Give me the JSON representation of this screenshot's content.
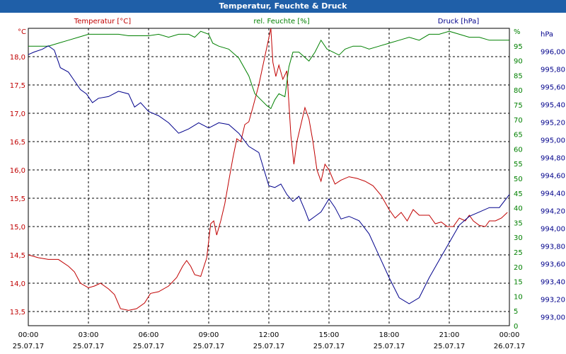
{
  "window": {
    "title": "Temperatur, Feuchte & Druck"
  },
  "chart_data": {
    "type": "line",
    "title": "Temperatur, Feuchte & Druck",
    "legend": {
      "placement": "top",
      "left": "Temperatur [°C]",
      "center": "rel. Feuchte [%]",
      "right": "Druck [hPa]"
    },
    "grid": true,
    "x_ticks": [
      {
        "time": "00:00",
        "date": "25.07.17"
      },
      {
        "time": "03:00",
        "date": "25.07.17"
      },
      {
        "time": "06:00",
        "date": "25.07.17"
      },
      {
        "time": "09:00",
        "date": "25.07.17"
      },
      {
        "time": "12:00",
        "date": "25.07.17"
      },
      {
        "time": "15:00",
        "date": "25.07.17"
      },
      {
        "time": "18:00",
        "date": "25.07.17"
      },
      {
        "time": "21:00",
        "date": "25.07.17"
      },
      {
        "time": "00:00",
        "date": "26.07.17"
      }
    ],
    "xlim_hours": [
      0,
      24
    ],
    "axes": {
      "temperature": {
        "unit": "°C",
        "ylim": [
          13.25,
          18.5
        ],
        "ticks": [
          "13,5",
          "14,0",
          "14,5",
          "15,0",
          "15,5",
          "16,0",
          "16,5",
          "17,0",
          "17,5",
          "18,0"
        ],
        "color": "#c00000"
      },
      "humidity": {
        "unit": "%",
        "ylim": [
          0,
          100
        ],
        "ticks": [
          "0",
          "5",
          "10",
          "15",
          "20",
          "25",
          "30",
          "35",
          "40",
          "45",
          "50",
          "55",
          "60",
          "65",
          "70",
          "75",
          "80",
          "85",
          "90",
          "95",
          "%"
        ],
        "color": "#008000"
      },
      "pressure": {
        "unit": "hPa",
        "ylim": [
          992.8,
          996.2
        ],
        "ticks": [
          "993,00",
          "993,20",
          "993,40",
          "993,60",
          "993,80",
          "994,00",
          "994,20",
          "994,40",
          "994,60",
          "994,80",
          "995,00",
          "995,20",
          "995,40",
          "995,60",
          "995,80",
          "996,00",
          "hPa"
        ],
        "color": "#00008b"
      }
    },
    "series": [
      {
        "name": "Temperatur [°C]",
        "axis": "temperature",
        "color": "#c00000",
        "points": [
          [
            0,
            14.5
          ],
          [
            0.5,
            14.45
          ],
          [
            1,
            14.42
          ],
          [
            1.5,
            14.42
          ],
          [
            2,
            14.3
          ],
          [
            2.3,
            14.2
          ],
          [
            2.6,
            14.0
          ],
          [
            3,
            13.92
          ],
          [
            3.3,
            13.95
          ],
          [
            3.6,
            14.0
          ],
          [
            4,
            13.9
          ],
          [
            4.3,
            13.8
          ],
          [
            4.6,
            13.55
          ],
          [
            5,
            13.52
          ],
          [
            5.4,
            13.55
          ],
          [
            5.8,
            13.65
          ],
          [
            6.1,
            13.82
          ],
          [
            6.5,
            13.85
          ],
          [
            7,
            13.95
          ],
          [
            7.4,
            14.1
          ],
          [
            7.7,
            14.3
          ],
          [
            7.9,
            14.4
          ],
          [
            8.1,
            14.3
          ],
          [
            8.3,
            14.15
          ],
          [
            8.6,
            14.12
          ],
          [
            8.9,
            14.45
          ],
          [
            9.1,
            15.05
          ],
          [
            9.25,
            15.1
          ],
          [
            9.4,
            14.85
          ],
          [
            9.6,
            15.1
          ],
          [
            9.8,
            15.4
          ],
          [
            10,
            15.8
          ],
          [
            10.2,
            16.2
          ],
          [
            10.4,
            16.55
          ],
          [
            10.6,
            16.5
          ],
          [
            10.8,
            16.8
          ],
          [
            11,
            16.85
          ],
          [
            11.2,
            17.1
          ],
          [
            11.5,
            17.5
          ],
          [
            11.8,
            18.0
          ],
          [
            11.95,
            18.25
          ],
          [
            12.1,
            18.5
          ],
          [
            12.2,
            17.9
          ],
          [
            12.35,
            17.65
          ],
          [
            12.5,
            17.85
          ],
          [
            12.7,
            17.6
          ],
          [
            12.9,
            17.75
          ],
          [
            13.1,
            16.6
          ],
          [
            13.25,
            16.1
          ],
          [
            13.4,
            16.5
          ],
          [
            13.6,
            16.8
          ],
          [
            13.8,
            17.1
          ],
          [
            14.0,
            16.9
          ],
          [
            14.2,
            16.5
          ],
          [
            14.4,
            16.0
          ],
          [
            14.6,
            15.8
          ],
          [
            14.8,
            16.1
          ],
          [
            15,
            16.0
          ],
          [
            15.3,
            15.75
          ],
          [
            15.6,
            15.82
          ],
          [
            16,
            15.88
          ],
          [
            16.4,
            15.85
          ],
          [
            16.8,
            15.8
          ],
          [
            17.2,
            15.72
          ],
          [
            17.6,
            15.55
          ],
          [
            18,
            15.3
          ],
          [
            18.3,
            15.15
          ],
          [
            18.6,
            15.25
          ],
          [
            18.9,
            15.1
          ],
          [
            19.2,
            15.3
          ],
          [
            19.5,
            15.2
          ],
          [
            20,
            15.2
          ],
          [
            20.3,
            15.05
          ],
          [
            20.6,
            15.08
          ],
          [
            20.9,
            15.0
          ],
          [
            21.2,
            15.0
          ],
          [
            21.5,
            15.15
          ],
          [
            21.8,
            15.1
          ],
          [
            22,
            15.2
          ],
          [
            22.2,
            15.1
          ],
          [
            22.5,
            15.02
          ],
          [
            22.8,
            15.0
          ],
          [
            23,
            15.1
          ],
          [
            23.3,
            15.1
          ],
          [
            23.6,
            15.15
          ],
          [
            23.9,
            15.25
          ]
        ]
      },
      {
        "name": "rel. Feuchte [%]",
        "axis": "humidity",
        "color": "#008000",
        "points": [
          [
            0,
            94
          ],
          [
            0.5,
            94
          ],
          [
            1,
            94
          ],
          [
            1.5,
            95
          ],
          [
            2,
            96
          ],
          [
            2.5,
            97
          ],
          [
            3,
            98
          ],
          [
            3.5,
            98
          ],
          [
            4,
            98
          ],
          [
            4.5,
            98
          ],
          [
            5,
            97.5
          ],
          [
            5.5,
            97.5
          ],
          [
            6,
            97.5
          ],
          [
            6.5,
            98
          ],
          [
            7,
            97
          ],
          [
            7.5,
            98
          ],
          [
            8,
            98
          ],
          [
            8.3,
            97
          ],
          [
            8.6,
            99
          ],
          [
            9,
            98
          ],
          [
            9.2,
            95
          ],
          [
            9.5,
            94
          ],
          [
            10,
            93
          ],
          [
            10.5,
            90
          ],
          [
            11,
            84
          ],
          [
            11.3,
            78
          ],
          [
            11.6,
            76
          ],
          [
            11.9,
            74
          ],
          [
            12.1,
            73
          ],
          [
            12.3,
            76
          ],
          [
            12.5,
            78
          ],
          [
            12.8,
            77
          ],
          [
            13.0,
            87
          ],
          [
            13.2,
            92
          ],
          [
            13.5,
            92
          ],
          [
            14,
            89
          ],
          [
            14.3,
            92
          ],
          [
            14.6,
            96
          ],
          [
            14.9,
            93
          ],
          [
            15.2,
            92
          ],
          [
            15.5,
            91
          ],
          [
            15.8,
            93
          ],
          [
            16.2,
            94
          ],
          [
            16.6,
            94
          ],
          [
            17,
            93
          ],
          [
            17.5,
            94
          ],
          [
            18,
            95
          ],
          [
            18.5,
            96
          ],
          [
            19,
            97
          ],
          [
            19.5,
            96
          ],
          [
            20,
            98
          ],
          [
            20.5,
            98
          ],
          [
            21,
            99
          ],
          [
            21.5,
            98
          ],
          [
            22,
            97
          ],
          [
            22.5,
            97
          ],
          [
            23,
            96
          ],
          [
            23.5,
            96
          ],
          [
            24,
            96
          ]
        ]
      },
      {
        "name": "Druck [hPa]",
        "axis": "pressure",
        "color": "#00008b",
        "points": [
          [
            0,
            995.9
          ],
          [
            0.3,
            995.93
          ],
          [
            0.7,
            995.96
          ],
          [
            1,
            996.0
          ],
          [
            1.3,
            995.95
          ],
          [
            1.6,
            995.75
          ],
          [
            2,
            995.7
          ],
          [
            2.3,
            995.6
          ],
          [
            2.6,
            995.5
          ],
          [
            2.9,
            995.45
          ],
          [
            3.2,
            995.35
          ],
          [
            3.5,
            995.4
          ],
          [
            4,
            995.42
          ],
          [
            4.5,
            995.48
          ],
          [
            5,
            995.45
          ],
          [
            5.3,
            995.3
          ],
          [
            5.6,
            995.35
          ],
          [
            6,
            995.25
          ],
          [
            6.5,
            995.2
          ],
          [
            7,
            995.12
          ],
          [
            7.5,
            995.0
          ],
          [
            8,
            995.05
          ],
          [
            8.5,
            995.12
          ],
          [
            9,
            995.06
          ],
          [
            9.5,
            995.12
          ],
          [
            10,
            995.1
          ],
          [
            10.5,
            995.0
          ],
          [
            11,
            994.85
          ],
          [
            11.5,
            994.78
          ],
          [
            12,
            994.4
          ],
          [
            12.3,
            994.38
          ],
          [
            12.6,
            994.42
          ],
          [
            12.9,
            994.3
          ],
          [
            13.2,
            994.22
          ],
          [
            13.5,
            994.28
          ],
          [
            13.8,
            994.12
          ],
          [
            14,
            994.0
          ],
          [
            14.3,
            994.05
          ],
          [
            14.6,
            994.1
          ],
          [
            15,
            994.25
          ],
          [
            15.3,
            994.15
          ],
          [
            15.6,
            994.02
          ],
          [
            16,
            994.05
          ],
          [
            16.5,
            994.0
          ],
          [
            17,
            993.85
          ],
          [
            17.5,
            993.6
          ],
          [
            18,
            993.35
          ],
          [
            18.5,
            993.12
          ],
          [
            19,
            993.05
          ],
          [
            19.5,
            993.12
          ],
          [
            20,
            993.35
          ],
          [
            20.5,
            993.55
          ],
          [
            21,
            993.75
          ],
          [
            21.5,
            993.95
          ],
          [
            22,
            994.05
          ],
          [
            22.5,
            994.1
          ],
          [
            23,
            994.15
          ],
          [
            23.5,
            994.15
          ],
          [
            24,
            994.3
          ]
        ]
      }
    ]
  }
}
